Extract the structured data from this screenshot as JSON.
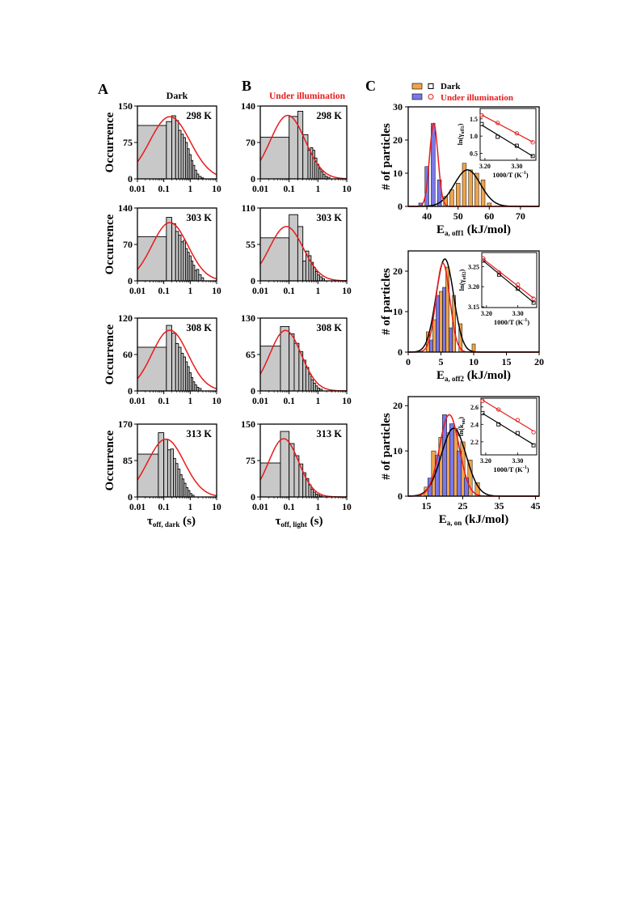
{
  "panels": {
    "A": {
      "letter": "A",
      "title": "Dark",
      "xlabel_main": "τ",
      "xlabel_sub": "off, dark",
      "xlabel_unit": " (s)"
    },
    "B": {
      "letter": "B",
      "title": "Under illumination",
      "xlabel_main": "τ",
      "xlabel_sub": "off, light",
      "xlabel_unit": " (s)"
    },
    "C": {
      "letter": "C"
    }
  },
  "legend": {
    "dark": "Dark",
    "light": "Under illumination"
  },
  "colors": {
    "dark_bar": "#f0a44a",
    "light_bar": "#7a78e8",
    "dark_fit": "#000000",
    "light_fit": "#e81a1a",
    "hist_bar": "#c8c8c8",
    "title_red": "#e81a1a"
  },
  "chart_data": [
    {
      "id": "A1",
      "type": "bar",
      "xscale": "log",
      "xlim": [
        0.01,
        10
      ],
      "ylim": [
        0,
        150
      ],
      "yticks": [
        "0",
        "75",
        "150"
      ],
      "ylabel": "Occurrence",
      "temperature": "298 K",
      "bins": [
        {
          "x0": 0.01,
          "x1": 0.125,
          "v": 110
        },
        {
          "x0": 0.125,
          "x1": 0.2,
          "v": 118
        },
        {
          "x0": 0.2,
          "x1": 0.28,
          "v": 130
        },
        {
          "x0": 0.28,
          "x1": 0.36,
          "v": 120
        },
        {
          "x0": 0.36,
          "x1": 0.45,
          "v": 100
        },
        {
          "x0": 0.45,
          "x1": 0.55,
          "v": 92
        },
        {
          "x0": 0.55,
          "x1": 0.66,
          "v": 85
        },
        {
          "x0": 0.66,
          "x1": 0.78,
          "v": 75
        },
        {
          "x0": 0.78,
          "x1": 0.92,
          "v": 62
        },
        {
          "x0": 0.92,
          "x1": 1.08,
          "v": 50
        },
        {
          "x0": 1.08,
          "x1": 1.26,
          "v": 38
        },
        {
          "x0": 1.26,
          "x1": 1.48,
          "v": 28
        },
        {
          "x0": 1.48,
          "x1": 1.75,
          "v": 18
        },
        {
          "x0": 1.75,
          "x1": 2.1,
          "v": 10
        },
        {
          "x0": 2.1,
          "x1": 2.6,
          "v": 5
        },
        {
          "x0": 2.6,
          "x1": 3.2,
          "v": 2
        }
      ],
      "fit": {
        "peak": 128,
        "center": 0.17,
        "left_val": 35
      }
    },
    {
      "id": "A2",
      "type": "bar",
      "xscale": "log",
      "xlim": [
        0.01,
        10
      ],
      "ylim": [
        0,
        140
      ],
      "yticks": [
        "0",
        "70",
        "140"
      ],
      "ylabel": "Occurrence",
      "temperature": "303 K",
      "bins": [
        {
          "x0": 0.01,
          "x1": 0.125,
          "v": 85
        },
        {
          "x0": 0.125,
          "x1": 0.2,
          "v": 122
        },
        {
          "x0": 0.2,
          "x1": 0.28,
          "v": 110
        },
        {
          "x0": 0.28,
          "x1": 0.36,
          "v": 95
        },
        {
          "x0": 0.36,
          "x1": 0.45,
          "v": 88
        },
        {
          "x0": 0.45,
          "x1": 0.55,
          "v": 75
        },
        {
          "x0": 0.55,
          "x1": 0.66,
          "v": 78
        },
        {
          "x0": 0.66,
          "x1": 0.78,
          "v": 62
        },
        {
          "x0": 0.78,
          "x1": 0.92,
          "v": 55
        },
        {
          "x0": 0.92,
          "x1": 1.08,
          "v": 48
        },
        {
          "x0": 1.08,
          "x1": 1.26,
          "v": 38
        },
        {
          "x0": 1.26,
          "x1": 1.48,
          "v": 30
        },
        {
          "x0": 1.48,
          "x1": 1.75,
          "v": 20
        },
        {
          "x0": 1.75,
          "x1": 2.1,
          "v": 22
        },
        {
          "x0": 2.1,
          "x1": 2.6,
          "v": 12
        },
        {
          "x0": 2.6,
          "x1": 3.2,
          "v": 6
        }
      ],
      "fit": {
        "peak": 112,
        "center": 0.17,
        "left_val": 22
      }
    },
    {
      "id": "A3",
      "type": "bar",
      "xscale": "log",
      "xlim": [
        0.01,
        10
      ],
      "ylim": [
        0,
        120
      ],
      "yticks": [
        "0",
        "60",
        "120"
      ],
      "ylabel": "Occurrence",
      "temperature": "308 K",
      "bins": [
        {
          "x0": 0.01,
          "x1": 0.125,
          "v": 72
        },
        {
          "x0": 0.125,
          "x1": 0.2,
          "v": 108
        },
        {
          "x0": 0.2,
          "x1": 0.28,
          "v": 95
        },
        {
          "x0": 0.28,
          "x1": 0.36,
          "v": 78
        },
        {
          "x0": 0.36,
          "x1": 0.45,
          "v": 72
        },
        {
          "x0": 0.45,
          "x1": 0.55,
          "v": 62
        },
        {
          "x0": 0.55,
          "x1": 0.66,
          "v": 56
        },
        {
          "x0": 0.66,
          "x1": 0.78,
          "v": 48
        },
        {
          "x0": 0.78,
          "x1": 0.92,
          "v": 40
        },
        {
          "x0": 0.92,
          "x1": 1.08,
          "v": 30
        },
        {
          "x0": 1.08,
          "x1": 1.26,
          "v": 22
        },
        {
          "x0": 1.26,
          "x1": 1.48,
          "v": 15
        },
        {
          "x0": 1.48,
          "x1": 1.75,
          "v": 10
        },
        {
          "x0": 1.75,
          "x1": 2.1,
          "v": 6
        },
        {
          "x0": 2.1,
          "x1": 2.6,
          "v": 4
        }
      ],
      "fit": {
        "peak": 100,
        "center": 0.17,
        "left_val": 20
      }
    },
    {
      "id": "A4",
      "type": "bar",
      "xscale": "log",
      "xlim": [
        0.01,
        10
      ],
      "ylim": [
        0,
        170
      ],
      "yticks": [
        "0",
        "85",
        "170"
      ],
      "ylabel": "Occurrence",
      "temperature": "313 K",
      "bins": [
        {
          "x0": 0.01,
          "x1": 0.062,
          "v": 100
        },
        {
          "x0": 0.062,
          "x1": 0.1,
          "v": 150
        },
        {
          "x0": 0.1,
          "x1": 0.14,
          "v": 135
        },
        {
          "x0": 0.14,
          "x1": 0.18,
          "v": 110
        },
        {
          "x0": 0.18,
          "x1": 0.23,
          "v": 112
        },
        {
          "x0": 0.23,
          "x1": 0.28,
          "v": 90
        },
        {
          "x0": 0.28,
          "x1": 0.34,
          "v": 78
        },
        {
          "x0": 0.34,
          "x1": 0.41,
          "v": 65
        },
        {
          "x0": 0.41,
          "x1": 0.49,
          "v": 52
        },
        {
          "x0": 0.49,
          "x1": 0.58,
          "v": 42
        },
        {
          "x0": 0.58,
          "x1": 0.69,
          "v": 32
        },
        {
          "x0": 0.69,
          "x1": 0.82,
          "v": 22
        },
        {
          "x0": 0.82,
          "x1": 0.97,
          "v": 15
        },
        {
          "x0": 0.97,
          "x1": 1.15,
          "v": 8
        },
        {
          "x0": 1.15,
          "x1": 1.4,
          "v": 4
        }
      ],
      "fit": {
        "peak": 135,
        "center": 0.12,
        "left_val": 40
      }
    },
    {
      "id": "B1",
      "type": "bar",
      "xscale": "log",
      "xlim": [
        0.01,
        10
      ],
      "ylim": [
        0,
        140
      ],
      "yticks": [
        "0",
        "70",
        "140"
      ],
      "ylabel": "",
      "temperature": "298 K",
      "bins": [
        {
          "x0": 0.01,
          "x1": 0.1,
          "v": 80
        },
        {
          "x0": 0.1,
          "x1": 0.2,
          "v": 120
        },
        {
          "x0": 0.2,
          "x1": 0.3,
          "v": 130
        },
        {
          "x0": 0.3,
          "x1": 0.45,
          "v": 85
        },
        {
          "x0": 0.45,
          "x1": 0.55,
          "v": 55
        },
        {
          "x0": 0.55,
          "x1": 0.66,
          "v": 60
        },
        {
          "x0": 0.66,
          "x1": 0.78,
          "v": 55
        },
        {
          "x0": 0.78,
          "x1": 0.92,
          "v": 40
        },
        {
          "x0": 0.92,
          "x1": 1.08,
          "v": 28
        },
        {
          "x0": 1.08,
          "x1": 1.26,
          "v": 20
        },
        {
          "x0": 1.26,
          "x1": 1.48,
          "v": 14
        },
        {
          "x0": 1.48,
          "x1": 1.75,
          "v": 9
        },
        {
          "x0": 1.75,
          "x1": 2.1,
          "v": 5
        },
        {
          "x0": 2.1,
          "x1": 2.6,
          "v": 3
        }
      ],
      "fit": {
        "peak": 122,
        "center": 0.09,
        "left_val": 35
      }
    },
    {
      "id": "B2",
      "type": "bar",
      "xscale": "log",
      "xlim": [
        0.01,
        10
      ],
      "ylim": [
        0,
        110
      ],
      "yticks": [
        "0",
        "55",
        "110"
      ],
      "ylabel": "",
      "temperature": "303 K",
      "bins": [
        {
          "x0": 0.01,
          "x1": 0.1,
          "v": 65
        },
        {
          "x0": 0.1,
          "x1": 0.2,
          "v": 100
        },
        {
          "x0": 0.2,
          "x1": 0.3,
          "v": 82
        },
        {
          "x0": 0.3,
          "x1": 0.38,
          "v": 30
        },
        {
          "x0": 0.38,
          "x1": 0.48,
          "v": 45
        },
        {
          "x0": 0.48,
          "x1": 0.58,
          "v": 38
        },
        {
          "x0": 0.58,
          "x1": 0.69,
          "v": 28
        },
        {
          "x0": 0.69,
          "x1": 0.82,
          "v": 20
        },
        {
          "x0": 0.82,
          "x1": 0.97,
          "v": 14
        },
        {
          "x0": 0.97,
          "x1": 1.15,
          "v": 9
        },
        {
          "x0": 1.15,
          "x1": 1.4,
          "v": 6
        },
        {
          "x0": 1.4,
          "x1": 1.7,
          "v": 3
        }
      ],
      "fit": {
        "peak": 82,
        "center": 0.08,
        "left_val": 25
      }
    },
    {
      "id": "B3",
      "type": "bar",
      "xscale": "log",
      "xlim": [
        0.01,
        10
      ],
      "ylim": [
        0,
        130
      ],
      "yticks": [
        "0",
        "65",
        "130"
      ],
      "ylabel": "",
      "temperature": "308 K",
      "bins": [
        {
          "x0": 0.01,
          "x1": 0.05,
          "v": 80
        },
        {
          "x0": 0.05,
          "x1": 0.1,
          "v": 115
        },
        {
          "x0": 0.1,
          "x1": 0.15,
          "v": 102
        },
        {
          "x0": 0.15,
          "x1": 0.22,
          "v": 85
        },
        {
          "x0": 0.22,
          "x1": 0.3,
          "v": 70
        },
        {
          "x0": 0.3,
          "x1": 0.38,
          "v": 55
        },
        {
          "x0": 0.38,
          "x1": 0.48,
          "v": 42
        },
        {
          "x0": 0.48,
          "x1": 0.58,
          "v": 30
        },
        {
          "x0": 0.58,
          "x1": 0.69,
          "v": 20
        },
        {
          "x0": 0.69,
          "x1": 0.82,
          "v": 14
        },
        {
          "x0": 0.82,
          "x1": 0.97,
          "v": 9
        },
        {
          "x0": 0.97,
          "x1": 1.15,
          "v": 5
        },
        {
          "x0": 1.15,
          "x1": 1.4,
          "v": 3
        }
      ],
      "fit": {
        "peak": 108,
        "center": 0.075,
        "left_val": 30
      }
    },
    {
      "id": "B4",
      "type": "bar",
      "xscale": "log",
      "xlim": [
        0.01,
        10
      ],
      "ylim": [
        0,
        150
      ],
      "yticks": [
        "0",
        "75",
        "150"
      ],
      "ylabel": "",
      "temperature": "313 K",
      "bins": [
        {
          "x0": 0.01,
          "x1": 0.05,
          "v": 70
        },
        {
          "x0": 0.05,
          "x1": 0.1,
          "v": 135
        },
        {
          "x0": 0.1,
          "x1": 0.15,
          "v": 110
        },
        {
          "x0": 0.15,
          "x1": 0.22,
          "v": 85
        },
        {
          "x0": 0.22,
          "x1": 0.3,
          "v": 68
        },
        {
          "x0": 0.3,
          "x1": 0.38,
          "v": 50
        },
        {
          "x0": 0.38,
          "x1": 0.48,
          "v": 38
        },
        {
          "x0": 0.48,
          "x1": 0.58,
          "v": 25
        },
        {
          "x0": 0.58,
          "x1": 0.69,
          "v": 16
        },
        {
          "x0": 0.69,
          "x1": 0.82,
          "v": 10
        },
        {
          "x0": 0.82,
          "x1": 0.97,
          "v": 6
        },
        {
          "x0": 0.97,
          "x1": 1.15,
          "v": 4
        },
        {
          "x0": 1.15,
          "x1": 1.4,
          "v": 2
        }
      ],
      "fit": {
        "peak": 120,
        "center": 0.065,
        "left_val": 35
      }
    },
    {
      "id": "C1",
      "type": "bar",
      "xlim": [
        34,
        76
      ],
      "ylim": [
        0,
        30
      ],
      "xticks": [
        40,
        50,
        60,
        70
      ],
      "yticks": [
        0,
        10,
        20,
        30
      ],
      "ylabel": "# of particles",
      "xlabel_main": "E",
      "xlabel_sub": "a, off1",
      "xlabel_unit": " (kJ/mol)",
      "dark": [
        [
          44,
          2
        ],
        [
          46,
          3
        ],
        [
          48,
          5
        ],
        [
          50,
          7
        ],
        [
          52,
          13
        ],
        [
          54,
          11
        ],
        [
          56,
          10
        ],
        [
          58,
          8
        ],
        [
          60,
          1
        ]
      ],
      "light": [
        [
          38,
          1
        ],
        [
          40,
          12
        ],
        [
          42,
          25
        ],
        [
          44,
          8
        ]
      ],
      "fit_dark": {
        "mu": 53,
        "sigma": 4.2,
        "amp": 11
      },
      "fit_light": {
        "mu": 42.2,
        "sigma": 1.35,
        "amp": 25
      },
      "inset": {
        "xlim": [
          3.185,
          3.36
        ],
        "ylim": [
          0.3,
          1.8
        ],
        "xticks": [
          "3.20",
          "3.30"
        ],
        "yticks": [
          "0.5",
          "1.0",
          "1.5"
        ],
        "ylabel": "ln(γ",
        "ylabel_sub": "off1",
        "xlabel": "1000/T  (K",
        "dark": [
          [
            3.19,
            1.35
          ],
          [
            3.24,
            0.98
          ],
          [
            3.3,
            0.72
          ],
          [
            3.35,
            0.42
          ]
        ],
        "light": [
          [
            3.19,
            1.6
          ],
          [
            3.24,
            1.38
          ],
          [
            3.3,
            1.08
          ],
          [
            3.35,
            0.82
          ]
        ]
      }
    },
    {
      "id": "C2",
      "type": "bar",
      "xlim": [
        0,
        20
      ],
      "ylim": [
        0,
        25
      ],
      "xticks": [
        0,
        5,
        10,
        15,
        20
      ],
      "yticks": [
        0,
        10,
        20
      ],
      "ylabel": "# of particles",
      "xlabel_main": "E",
      "xlabel_sub": "a, off2",
      "xlabel_unit": " (kJ/mol)",
      "dark": [
        [
          3,
          5
        ],
        [
          4,
          8
        ],
        [
          5,
          15
        ],
        [
          6,
          21
        ],
        [
          7,
          14
        ],
        [
          8,
          7
        ],
        [
          10,
          2
        ]
      ],
      "light": [
        [
          3.5,
          3
        ],
        [
          4.5,
          14
        ],
        [
          5.5,
          16
        ],
        [
          6.5,
          6
        ]
      ],
      "fit_dark": {
        "mu": 5.6,
        "sigma": 1.35,
        "amp": 23
      },
      "fit_light": {
        "mu": 5.3,
        "sigma": 1.05,
        "amp": 22
      },
      "inset": {
        "xlim": [
          3.185,
          3.36
        ],
        "ylim": [
          3.148,
          3.285
        ],
        "xticks": [
          "3.20",
          "3.30"
        ],
        "yticks": [
          "3.15",
          "3.20",
          "3.25"
        ],
        "ylabel": "ln(γ",
        "ylabel_sub": "off2",
        "xlabel": "1000/T  (K",
        "dark": [
          [
            3.19,
            3.265
          ],
          [
            3.24,
            3.23
          ],
          [
            3.3,
            3.195
          ],
          [
            3.35,
            3.16
          ]
        ],
        "light": [
          [
            3.19,
            3.27
          ],
          [
            3.24,
            3.235
          ],
          [
            3.3,
            3.205
          ],
          [
            3.35,
            3.17
          ]
        ]
      }
    },
    {
      "id": "C3",
      "type": "bar",
      "xlim": [
        10,
        46
      ],
      "ylim": [
        0,
        22
      ],
      "xticks": [
        15,
        25,
        35,
        45
      ],
      "yticks": [
        0,
        10,
        20
      ],
      "ylabel": "# of particles",
      "xlabel_main": "E",
      "xlabel_sub": "a, on",
      "xlabel_unit": " (kJ/mol)",
      "dark": [
        [
          15,
          2
        ],
        [
          17,
          10
        ],
        [
          19,
          13
        ],
        [
          21,
          14
        ],
        [
          23,
          15
        ],
        [
          25,
          12
        ],
        [
          27,
          8
        ],
        [
          29,
          3
        ]
      ],
      "light": [
        [
          16,
          4
        ],
        [
          18,
          9
        ],
        [
          20,
          18
        ],
        [
          22,
          16
        ],
        [
          24,
          10
        ],
        [
          26,
          4
        ]
      ],
      "fit_dark": {
        "mu": 22.5,
        "sigma": 3.4,
        "amp": 15
      },
      "fit_light": {
        "mu": 21.3,
        "sigma": 2.7,
        "amp": 18
      },
      "inset": {
        "xlim": [
          3.185,
          3.36
        ],
        "ylim": [
          2.05,
          2.7
        ],
        "xticks": [
          "3.20",
          "3.30"
        ],
        "yticks": [
          "2.2",
          "2.4",
          "2.6"
        ],
        "ylabel": "ln(k",
        "ylabel_sub": "on",
        "xlabel": "1000/T  (K",
        "dark": [
          [
            3.19,
            2.53
          ],
          [
            3.24,
            2.4
          ],
          [
            3.3,
            2.3
          ],
          [
            3.35,
            2.16
          ]
        ],
        "light": [
          [
            3.19,
            2.67
          ],
          [
            3.24,
            2.57
          ],
          [
            3.3,
            2.45
          ],
          [
            3.35,
            2.31
          ]
        ]
      }
    }
  ]
}
